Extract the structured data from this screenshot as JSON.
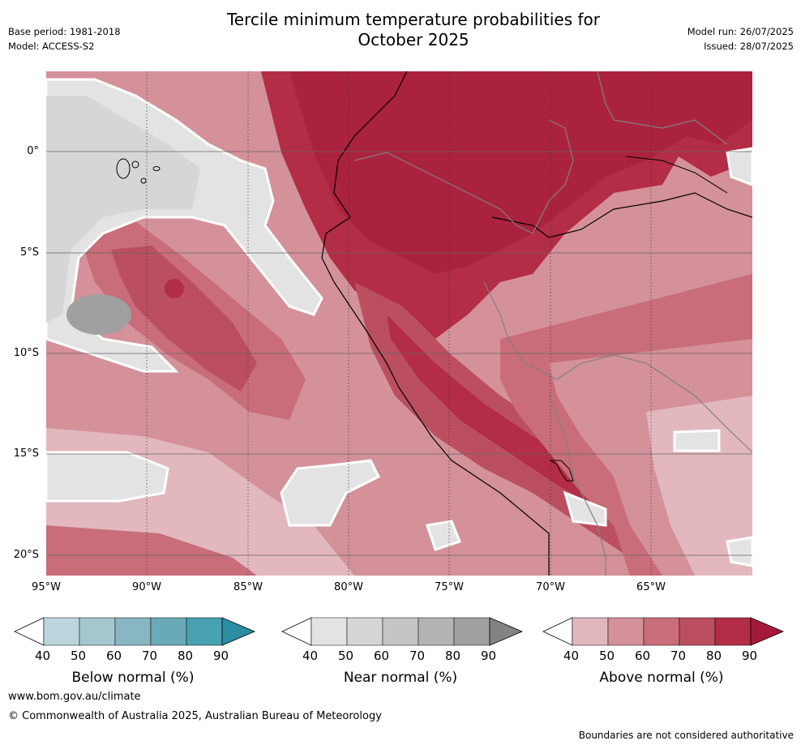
{
  "header": {
    "base_period": "Base period: 1981-2018",
    "model": "Model: ACCESS-S2",
    "title_line1": "Tercile minimum temperature probabilities for",
    "title_line2": "October 2025",
    "model_run": "Model run: 26/07/2025",
    "issued": "Issued: 28/07/2025"
  },
  "map": {
    "lat_labels": [
      "0°",
      "5°S",
      "10°S",
      "15°S",
      "20°S"
    ],
    "lon_labels": [
      "95°W",
      "90°W",
      "85°W",
      "80°W",
      "75°W",
      "70°W",
      "65°W"
    ]
  },
  "legends": [
    {
      "title": "Below normal (%)",
      "ticks": [
        "40",
        "50",
        "60",
        "70",
        "80",
        "90"
      ],
      "colors": [
        "#ffffff",
        "#bcd5dc",
        "#a4c6cf",
        "#88b6c2",
        "#6aa9b8",
        "#48a1b1",
        "#2b8ea3"
      ]
    },
    {
      "title": "Near normal (%)",
      "ticks": [
        "40",
        "50",
        "60",
        "70",
        "80",
        "90"
      ],
      "colors": [
        "#ffffff",
        "#e3e3e3",
        "#d6d6d6",
        "#c5c5c5",
        "#b4b4b4",
        "#a0a0a0",
        "#838383"
      ]
    },
    {
      "title": "Above normal (%)",
      "ticks": [
        "40",
        "50",
        "60",
        "70",
        "80",
        "90"
      ],
      "colors": [
        "#ffffff",
        "#e2b8be",
        "#d4919a",
        "#c86d79",
        "#bb4f60",
        "#b22d45",
        "#a51a3a"
      ]
    }
  ],
  "footer": {
    "url": "www.bom.gov.au/climate",
    "copyright": "© Commonwealth of Australia 2025, Australian Bureau of Meteorology",
    "disclaimer": "Boundaries are not considered authoritative"
  }
}
